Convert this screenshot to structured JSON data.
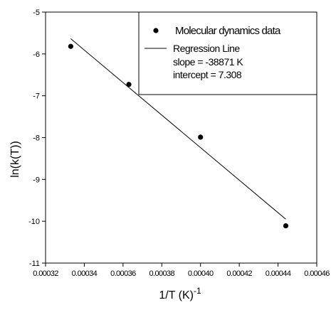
{
  "chart_data": {
    "type": "scatter",
    "title": "",
    "xlabel": "1/T (K)",
    "xlabel_superscript": "-1",
    "ylabel": "ln(k(T))",
    "xlim": [
      0.00032,
      0.00046
    ],
    "ylim": [
      -11,
      -5
    ],
    "x_ticks": [
      0.00032,
      0.00034,
      0.00036,
      0.00038,
      0.0004,
      0.00042,
      0.00044,
      0.00046
    ],
    "x_tick_labels": [
      "0.00032",
      "0.00034",
      "0.00036",
      "0.00038",
      "0.00040",
      "0.00042",
      "0.00044",
      "0.00046"
    ],
    "y_ticks": [
      -11,
      -10,
      -9,
      -8,
      -7,
      -6,
      -5
    ],
    "y_tick_labels": [
      "-11",
      "-10",
      "-9",
      "-8",
      "-7",
      "-6",
      "-5"
    ],
    "grid": false,
    "legend_position": "top-right",
    "series": [
      {
        "name": "Molecular dynamics data",
        "kind": "scatter",
        "color": "#000000",
        "points": [
          {
            "x": 0.000333,
            "y": -5.82
          },
          {
            "x": 0.000363,
            "y": -6.73
          },
          {
            "x": 0.0004,
            "y": -7.99
          },
          {
            "x": 0.000444,
            "y": -10.11
          }
        ]
      },
      {
        "name": "Regression Line",
        "kind": "line",
        "color": "#000000",
        "slope": -38871,
        "intercept": 7.308,
        "x_range": [
          0.000333,
          0.000444
        ]
      }
    ],
    "legend": {
      "items": [
        "Molecular dynamics data",
        "Regression Line"
      ],
      "notes": [
        "slope = -38871 K",
        "intercept = 7.308"
      ]
    }
  }
}
